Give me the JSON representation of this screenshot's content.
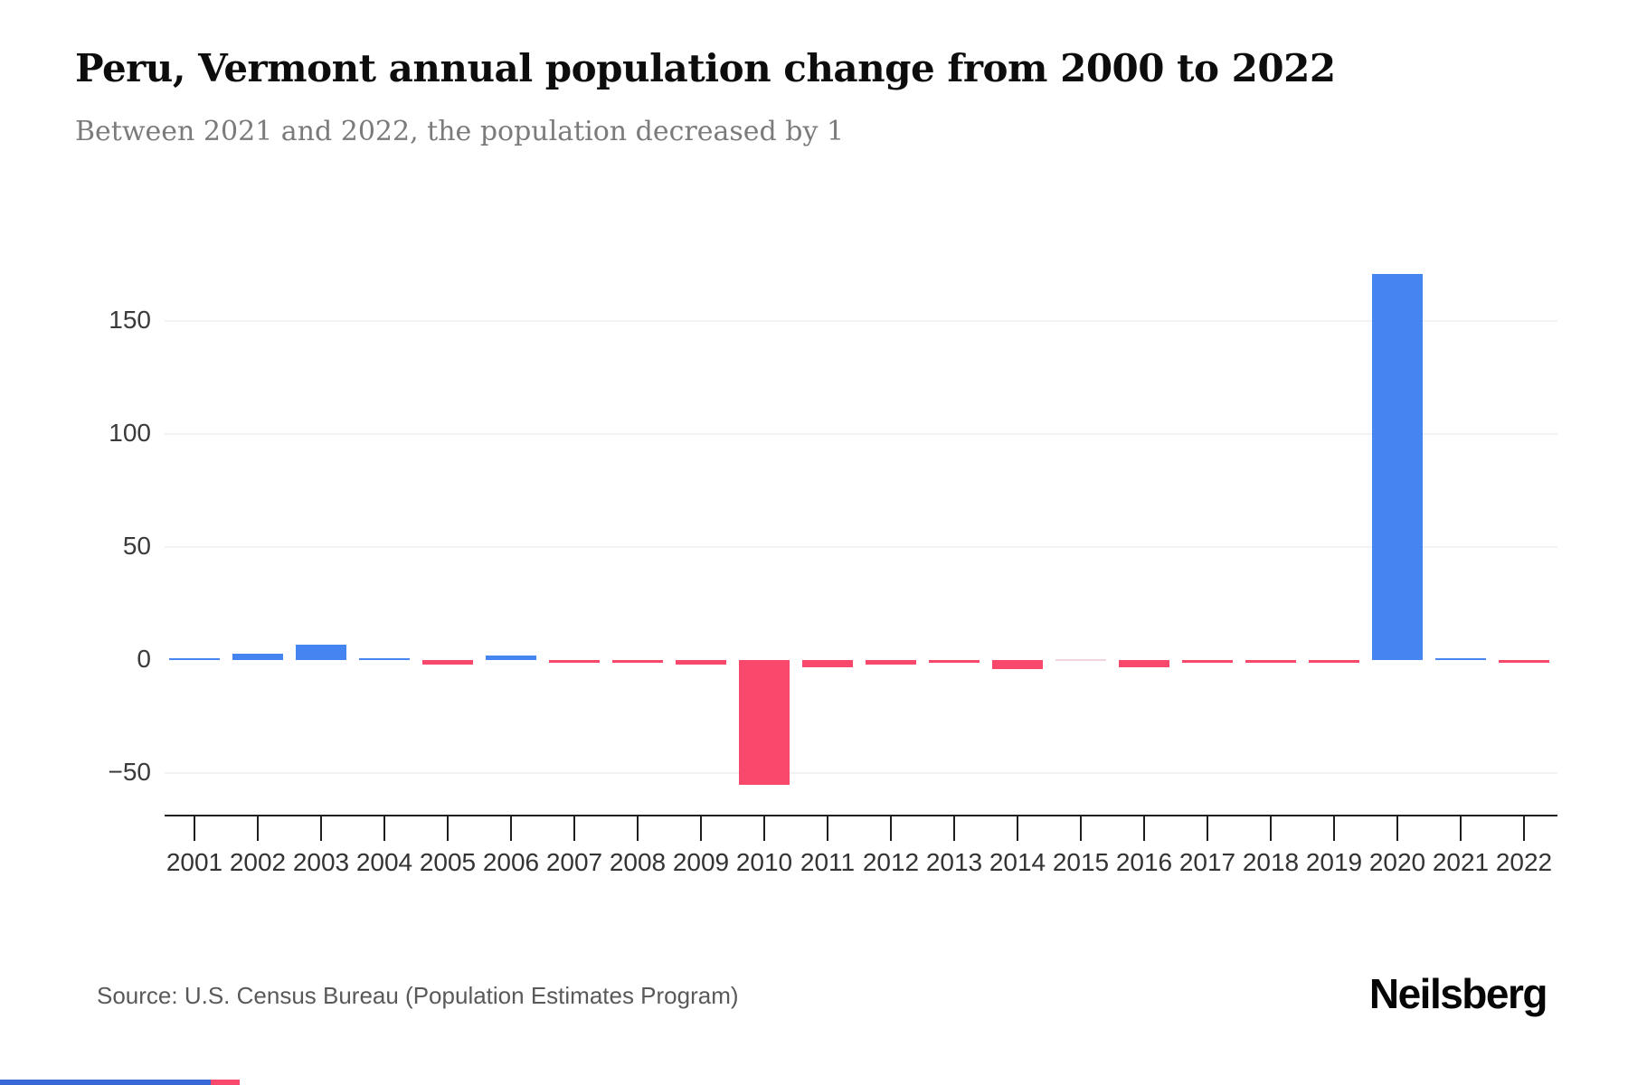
{
  "page": {
    "title": "Peru, Vermont annual population change from 2000 to 2022",
    "subtitle": "Between 2021 and 2022, the population decreased by 1",
    "source": "Source: U.S. Census Bureau (Population Estimates Program)",
    "brand": "Neilsberg"
  },
  "colors": {
    "positive_bar": "#4485F2",
    "negative_bar": "#F8496C",
    "zero_bar": "#f1d5db",
    "grid": "#f2f2f2",
    "axis": "#1f1f1f",
    "label": "#333333",
    "footer_blue": "#3867D6",
    "footer_red": "#F8496C"
  },
  "chart_data": {
    "type": "bar",
    "title": "Peru, Vermont annual population change from 2000 to 2022",
    "subtitle": "Between 2021 and 2022, the population decreased by 1",
    "xlabel": "",
    "ylabel": "",
    "categories": [
      "2001",
      "2002",
      "2003",
      "2004",
      "2005",
      "2006",
      "2007",
      "2008",
      "2009",
      "2010",
      "2011",
      "2012",
      "2013",
      "2014",
      "2015",
      "2016",
      "2017",
      "2018",
      "2019",
      "2020",
      "2021",
      "2022"
    ],
    "values": [
      1,
      3,
      7,
      1,
      -2,
      2,
      -1,
      -1,
      -2,
      -55,
      -3,
      -2,
      -1,
      -4,
      0,
      -3,
      -1,
      -1,
      -1,
      171,
      1,
      -1
    ],
    "yticks": [
      150,
      100,
      50,
      0,
      -50
    ],
    "ylim": [
      -75,
      190
    ],
    "grid": "horizontal",
    "legend": "none",
    "color_rule": "positive values blue, negative values red"
  }
}
